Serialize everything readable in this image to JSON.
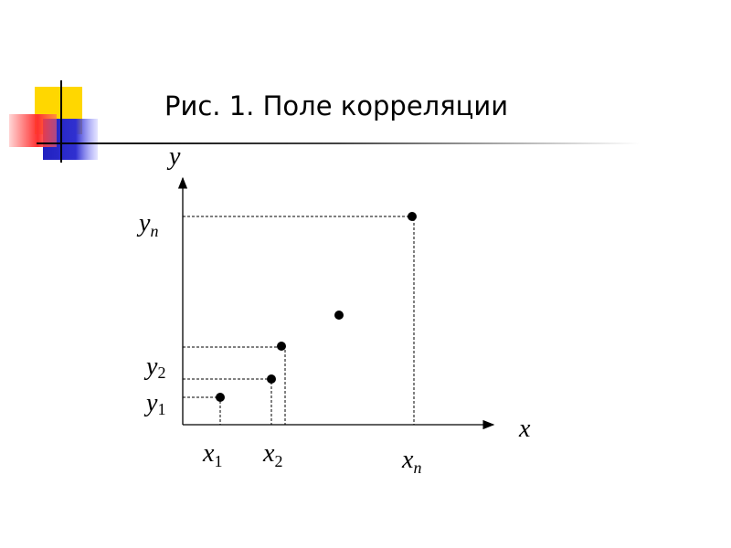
{
  "title": "Рис. 1. Поле корреляции",
  "axes": {
    "x": "x",
    "y": "y"
  },
  "labels": [
    {
      "base": "y",
      "sub": "n"
    },
    {
      "base": "y",
      "sub": "2"
    },
    {
      "base": "y",
      "sub": "1"
    },
    {
      "base": "x",
      "sub": "1"
    },
    {
      "base": "x",
      "sub": "2"
    },
    {
      "base": "x",
      "sub": "n"
    }
  ]
}
